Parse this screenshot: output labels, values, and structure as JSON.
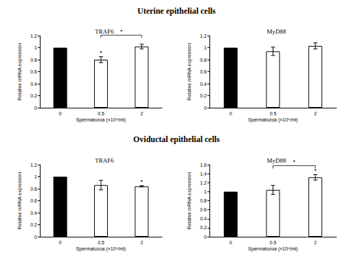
{
  "headings": [
    "Uterine epithelial cells",
    "Oviductal epithelial cells"
  ],
  "chart_data": [
    {
      "type": "bar",
      "title": "TRAF6",
      "x_label": "Spermatozoa (×10⁶/ml)",
      "y_label": "Relative mRNA expression",
      "categories": [
        "0",
        "0.5",
        "2"
      ],
      "values": [
        1,
        0.8,
        1.02
      ],
      "errors": [
        null,
        0.05,
        0.04
      ],
      "colors": [
        "#000000",
        "#ffffff",
        "#ffffff"
      ],
      "ylim": [
        0,
        1.2
      ],
      "yticks": [
        0,
        0.2,
        0.4,
        0.6,
        0.8,
        1,
        1.2
      ],
      "grid": false,
      "annotations": [
        {
          "category": "0.5",
          "text": "*"
        }
      ],
      "brackets": [
        {
          "from": "0.5",
          "to": "2",
          "text": "*"
        }
      ]
    },
    {
      "type": "bar",
      "title": "MyD88",
      "x_label": "Spermatozoa (×10⁶/ml)",
      "y_label": "Relative mRNA expression",
      "categories": [
        "0",
        "0.5",
        "2"
      ],
      "values": [
        1,
        0.94,
        1.03
      ],
      "errors": [
        null,
        0.07,
        0.05
      ],
      "colors": [
        "#000000",
        "#ffffff",
        "#ffffff"
      ],
      "ylim": [
        0,
        1.2
      ],
      "yticks": [
        0,
        0.2,
        0.4,
        0.6,
        0.8,
        1,
        1.2
      ],
      "grid": false,
      "annotations": [],
      "brackets": []
    },
    {
      "type": "bar",
      "title": "TRAF6",
      "x_label": "Spermatozoa (×10⁶/ml)",
      "y_label": "Relative mRNA expression",
      "categories": [
        "0",
        "0.5",
        "2"
      ],
      "values": [
        1,
        0.86,
        0.84
      ],
      "errors": [
        null,
        0.08,
        0.01
      ],
      "colors": [
        "#000000",
        "#ffffff",
        "#ffffff"
      ],
      "ylim": [
        0,
        1.2
      ],
      "yticks": [
        0,
        0.2,
        0.4,
        0.6,
        0.8,
        1,
        1.2
      ],
      "grid": false,
      "annotations": [
        {
          "category": "2",
          "text": "*"
        }
      ],
      "brackets": []
    },
    {
      "type": "bar",
      "title": "MyD88",
      "x_label": "Spermatozoa (×10⁶/ml)",
      "y_label": "Relative mRNA expression",
      "categories": [
        "0",
        "0.5",
        "2"
      ],
      "values": [
        1,
        1.04,
        1.32
      ],
      "errors": [
        null,
        0.1,
        0.06
      ],
      "colors": [
        "#000000",
        "#ffffff",
        "#ffffff"
      ],
      "ylim": [
        0,
        1.6
      ],
      "yticks": [
        0,
        0.2,
        0.4,
        0.6,
        0.8,
        1,
        1.2,
        1.4,
        1.6
      ],
      "grid": false,
      "annotations": [
        {
          "category": "2",
          "text": "*"
        }
      ],
      "brackets": [
        {
          "from": "0.5",
          "to": "2",
          "text": "*"
        }
      ]
    }
  ]
}
